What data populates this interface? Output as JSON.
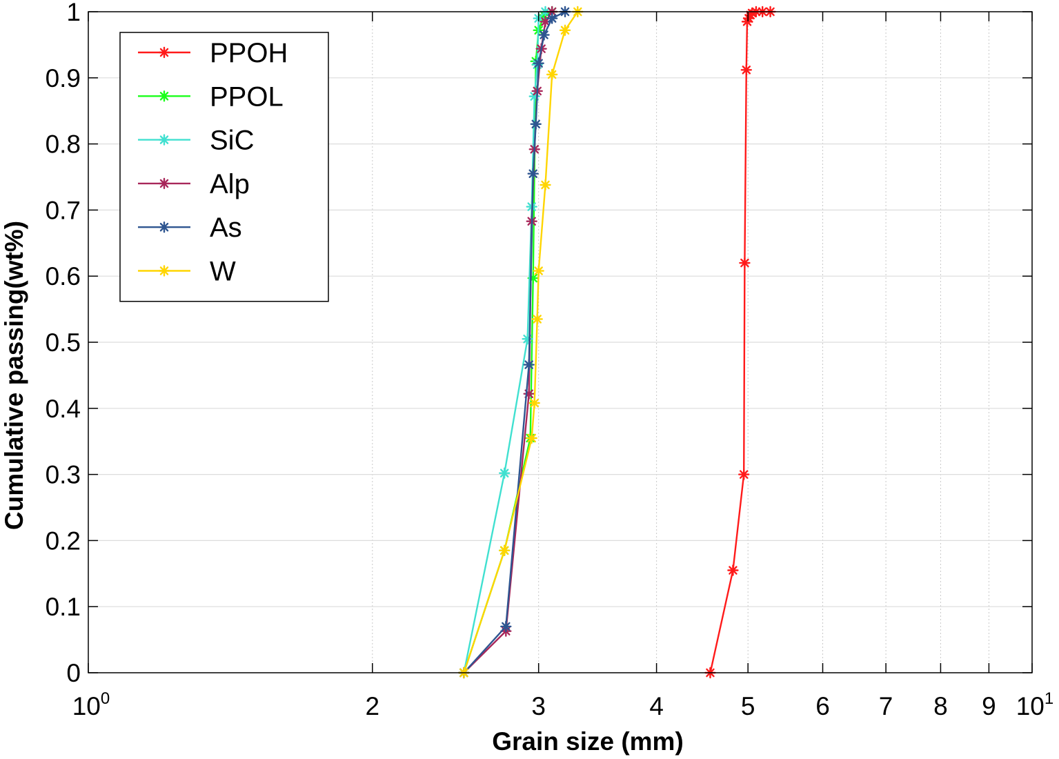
{
  "chart_data": {
    "type": "line",
    "xlabel": "Grain size (mm)",
    "ylabel": "Cumulative passing(wt%)",
    "xscale": "log",
    "xlim": [
      1,
      10
    ],
    "ylim": [
      0,
      1
    ],
    "grid": true,
    "legend_position": "top-left",
    "x_ticks": [
      {
        "value": 1,
        "base": "10",
        "exp": "0"
      },
      {
        "value": 2,
        "label": "2"
      },
      {
        "value": 3,
        "label": "3"
      },
      {
        "value": 4,
        "label": "4"
      },
      {
        "value": 5,
        "label": "5"
      },
      {
        "value": 6,
        "label": "6"
      },
      {
        "value": 7,
        "label": "7"
      },
      {
        "value": 8,
        "label": "8"
      },
      {
        "value": 9,
        "label": "9"
      },
      {
        "value": 10,
        "base": "10",
        "exp": "1"
      }
    ],
    "y_ticks": [
      {
        "value": 0,
        "label": "0"
      },
      {
        "value": 0.1,
        "label": "0.1"
      },
      {
        "value": 0.2,
        "label": "0.2"
      },
      {
        "value": 0.3,
        "label": "0.3"
      },
      {
        "value": 0.4,
        "label": "0.4"
      },
      {
        "value": 0.5,
        "label": "0.5"
      },
      {
        "value": 0.6,
        "label": "0.6"
      },
      {
        "value": 0.7,
        "label": "0.7"
      },
      {
        "value": 0.8,
        "label": "0.8"
      },
      {
        "value": 0.9,
        "label": "0.9"
      },
      {
        "value": 1,
        "label": "1"
      }
    ],
    "series": [
      {
        "name": "PPOH",
        "color": "#ff1a1a",
        "x": [
          4.56,
          4.82,
          4.95,
          4.96,
          4.98,
          4.99,
          5.01,
          5.03,
          5.05,
          5.1,
          5.18,
          5.28
        ],
        "y": [
          0.0,
          0.155,
          0.3,
          0.62,
          0.912,
          0.985,
          0.99,
          0.995,
          0.998,
          1.0,
          1.0,
          1.0
        ]
      },
      {
        "name": "PPOL",
        "color": "#1aff1a",
        "x": [
          2.5,
          2.76,
          2.94,
          2.96,
          2.98,
          3.0,
          3.04,
          3.1
        ],
        "y": [
          0.0,
          0.185,
          0.355,
          0.597,
          0.925,
          0.972,
          0.995,
          1.0
        ]
      },
      {
        "name": "SiC",
        "color": "#40e0d0",
        "x": [
          2.5,
          2.76,
          2.92,
          2.95,
          2.97,
          2.99,
          3.0,
          3.05
        ],
        "y": [
          0.0,
          0.302,
          0.505,
          0.705,
          0.872,
          0.92,
          0.99,
          1.0
        ]
      },
      {
        "name": "Alp",
        "color": "#a8275a",
        "x": [
          2.5,
          2.77,
          2.93,
          2.95,
          2.97,
          2.99,
          3.02,
          3.05,
          3.1
        ],
        "y": [
          0.0,
          0.063,
          0.422,
          0.683,
          0.792,
          0.88,
          0.944,
          0.985,
          1.0
        ]
      },
      {
        "name": "As",
        "color": "#2e5590",
        "x": [
          2.5,
          2.77,
          2.93,
          2.96,
          2.98,
          3.0,
          3.04,
          3.1,
          3.2
        ],
        "y": [
          0.0,
          0.07,
          0.466,
          0.755,
          0.83,
          0.922,
          0.965,
          0.99,
          1.0
        ]
      },
      {
        "name": "W",
        "color": "#ffd500",
        "x": [
          2.5,
          2.76,
          2.95,
          2.97,
          2.99,
          3.0,
          3.05,
          3.1,
          3.2,
          3.3
        ],
        "y": [
          0.0,
          0.185,
          0.355,
          0.408,
          0.535,
          0.608,
          0.738,
          0.905,
          0.972,
          1.0
        ]
      }
    ]
  }
}
